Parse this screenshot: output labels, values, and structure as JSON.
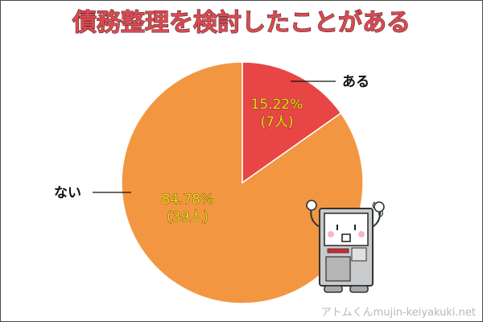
{
  "chart_data": {
    "type": "pie",
    "title": "債務整理を検討したことがある",
    "slices": [
      {
        "label": "ある",
        "percent": 15.22,
        "count_label": "(7人)",
        "value": 7,
        "color": "#e84545"
      },
      {
        "label": "ない",
        "percent": 84.78,
        "count_label": "(39人)",
        "value": 39,
        "color": "#f39642"
      }
    ],
    "start_angle": "12 o'clock",
    "direction": "clockwise",
    "legend": "none"
  },
  "watermark": "アトムくんmujin-keiyakuki.net",
  "colors": {
    "title_fill": "#d94a52",
    "percent_text": "#f3e21c",
    "outline": "#4a4a4a"
  },
  "mascot_icon": "atom-kun-contract-machine-mascot"
}
